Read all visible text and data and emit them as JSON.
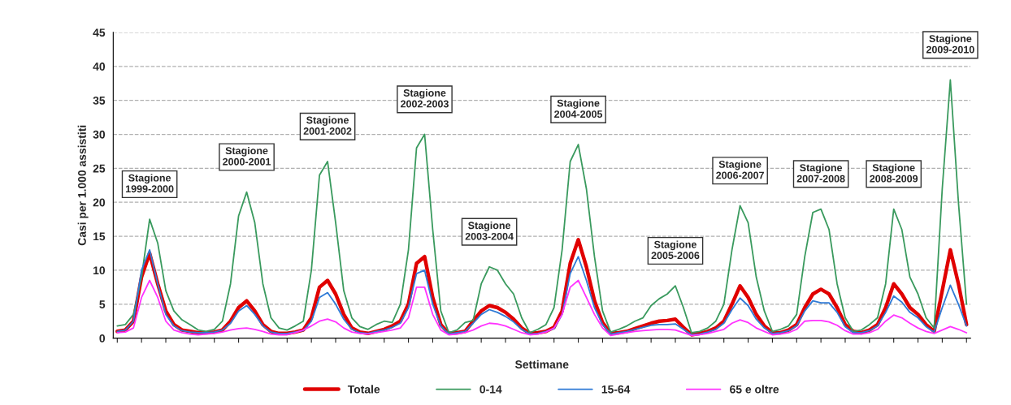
{
  "chart_data": {
    "type": "line",
    "xlabel": "Settimane",
    "ylabel": "Casi per 1.000 assistiti",
    "categories": [
      null,
      null,
      null,
      null,
      null,
      null,
      null,
      null,
      null,
      null,
      null,
      null,
      null,
      null,
      null,
      null,
      null,
      null,
      null,
      null,
      null,
      null,
      null,
      null,
      null,
      null,
      null,
      null,
      null,
      null,
      null,
      null,
      null,
      null,
      null,
      null,
      null,
      null,
      null,
      null,
      null,
      null,
      null,
      null,
      null,
      null,
      null,
      null,
      null,
      null,
      null,
      null,
      null,
      null,
      null,
      null,
      null,
      null,
      null,
      null,
      null,
      null,
      null,
      null,
      null,
      null,
      null,
      null,
      null,
      null,
      null,
      null,
      null,
      null,
      null,
      null,
      null,
      null,
      null,
      null,
      null,
      null,
      null,
      null,
      null,
      null,
      null,
      null,
      null,
      null,
      null,
      null,
      null,
      null,
      null,
      null,
      null,
      null,
      null,
      null,
      null,
      null,
      null,
      null,
      null,
      null
    ],
    "series": [
      {
        "name": "Totale",
        "color": "#e00000",
        "values": [
          1.0,
          1.2,
          2.5,
          9,
          12.5,
          8,
          4,
          2,
          1.2,
          1.0,
          0.8,
          0.8,
          0.9,
          1.2,
          2.5,
          4.5,
          5.5,
          4,
          2,
          1.0,
          0.7,
          0.7,
          0.9,
          1.2,
          3,
          7.5,
          8.5,
          6.5,
          3.5,
          1.5,
          0.9,
          0.7,
          1.0,
          1.3,
          1.8,
          2.5,
          5,
          11,
          12,
          6,
          2,
          0.7,
          0.8,
          1.0,
          2.5,
          4,
          4.8,
          4.5,
          3.8,
          2.8,
          1.5,
          0.7,
          0.8,
          1.0,
          1.6,
          4,
          11,
          14.5,
          10.5,
          5.5,
          2.3,
          0.7,
          0.8,
          1.0,
          1.4,
          1.8,
          2.2,
          2.5,
          2.6,
          2.8,
          1.6,
          0.5,
          0.7,
          1.0,
          1.5,
          2.5,
          5,
          7.7,
          6,
          3.5,
          1.8,
          0.8,
          0.8,
          1.2,
          2,
          4.5,
          6.5,
          7.2,
          6.5,
          4.5,
          2,
          1.0,
          0.8,
          1.2,
          2,
          4.5,
          8,
          6.5,
          4.5,
          3.5,
          2,
          1.0,
          7,
          13,
          8,
          2
        ]
      },
      {
        "name": "0-14",
        "color": "#3a9a5e",
        "values": [
          1.8,
          2.0,
          3.5,
          9,
          17.5,
          14,
          7,
          4,
          2.7,
          2,
          1.2,
          1.0,
          1.3,
          2.5,
          8,
          18,
          21.5,
          17,
          8,
          3,
          1.5,
          1.2,
          1.8,
          2.5,
          10,
          24,
          26,
          17,
          7,
          3,
          1.7,
          1.3,
          2,
          2.5,
          2.3,
          5,
          13,
          28,
          30,
          16,
          4,
          0.8,
          1.2,
          2.3,
          2.6,
          8,
          10.5,
          10,
          8,
          6.5,
          3,
          0.8,
          1.3,
          2,
          4.5,
          13,
          26,
          28.5,
          22,
          12,
          4,
          0.9,
          1.3,
          1.8,
          2.5,
          3,
          4.8,
          5.8,
          6.5,
          7.7,
          4.5,
          0.8,
          1.0,
          1.5,
          2.5,
          5,
          13,
          19.5,
          17,
          9,
          4,
          1.0,
          1.3,
          1.8,
          3.5,
          12,
          18.5,
          19,
          16,
          8,
          3,
          1.0,
          1.2,
          2,
          3,
          8,
          19,
          16,
          9,
          6.5,
          3,
          1.5,
          22,
          38,
          20,
          5
        ]
      },
      {
        "name": "15-64",
        "color": "#2f7ad6",
        "values": [
          1.0,
          1.2,
          2.5,
          10,
          13,
          8,
          3.5,
          1.8,
          1.1,
          0.9,
          0.8,
          0.8,
          0.9,
          1.2,
          2.2,
          4,
          4.8,
          3.5,
          1.8,
          0.9,
          0.7,
          0.7,
          0.9,
          1.1,
          2.5,
          6,
          6.7,
          5,
          2.8,
          1.3,
          0.8,
          0.7,
          1.0,
          1.2,
          1.6,
          2.2,
          4.5,
          9.5,
          10,
          5,
          1.8,
          0.6,
          0.8,
          1.0,
          2.2,
          3.5,
          4.2,
          3.8,
          3.2,
          2.4,
          1.3,
          0.6,
          0.7,
          1.0,
          1.4,
          3.5,
          9.5,
          12,
          8.5,
          4.5,
          2,
          0.6,
          0.8,
          1.0,
          1.3,
          1.6,
          1.9,
          2.0,
          2.0,
          2.1,
          1.3,
          0.5,
          0.6,
          0.9,
          1.3,
          2.2,
          4.2,
          5.9,
          4.8,
          2.8,
          1.5,
          0.7,
          0.8,
          1.1,
          1.8,
          4,
          5.5,
          5.2,
          5.2,
          3.8,
          1.7,
          0.8,
          0.8,
          1.1,
          1.8,
          3.8,
          6.2,
          5.3,
          3.8,
          3,
          1.7,
          0.9,
          4.5,
          7.8,
          5,
          1.8
        ]
      },
      {
        "name": "65 e oltre",
        "color": "#ff33ff",
        "values": [
          0.8,
          0.9,
          1.5,
          6,
          8.5,
          6,
          2.5,
          1.2,
          0.8,
          0.6,
          0.5,
          0.6,
          0.7,
          0.9,
          1.2,
          1.4,
          1.5,
          1.3,
          1.0,
          0.6,
          0.5,
          0.5,
          0.8,
          1.2,
          1.8,
          2.5,
          2.8,
          2.4,
          1.5,
          0.9,
          0.7,
          0.6,
          0.8,
          1.0,
          1.2,
          1.5,
          3,
          7.5,
          7.5,
          3.5,
          1.2,
          0.5,
          0.6,
          0.8,
          1.2,
          1.8,
          2.2,
          2.1,
          1.8,
          1.3,
          0.8,
          0.5,
          0.6,
          0.9,
          1.5,
          3.5,
          7.5,
          8.5,
          6,
          3.5,
          1.5,
          0.4,
          0.6,
          0.8,
          1.0,
          1.1,
          1.2,
          1.3,
          1.3,
          1.2,
          0.8,
          0.4,
          0.5,
          0.7,
          1.0,
          1.3,
          2.2,
          2.7,
          2.3,
          1.5,
          1.0,
          0.5,
          0.6,
          0.8,
          1.3,
          2.5,
          2.6,
          2.6,
          2.4,
          1.9,
          1.1,
          0.6,
          0.6,
          0.8,
          1.3,
          2.5,
          3.4,
          3,
          2.2,
          1.5,
          1.0,
          0.7,
          1.2,
          1.7,
          1.3,
          0.8
        ]
      }
    ],
    "ylim": [
      0,
      45
    ],
    "yticks": [
      0,
      5,
      10,
      15,
      20,
      25,
      30,
      35,
      40,
      45
    ],
    "grid": "y",
    "legend": "bottom",
    "line_style": "solid",
    "marker": "none",
    "annotations": [
      "Stagione\n1999-2000",
      "Stagione\n2000-2001",
      "Stagione\n2001-2002",
      "Stagione\n2002-2003",
      "Stagione\n2003-2004",
      "Stagione\n2004-2005",
      "Stagione\n2005-2006",
      "Stagione\n2006-2007",
      "Stagione\n2007-2008",
      "Stagione\n2008-2009",
      "Stagione\n2009-2010"
    ]
  }
}
